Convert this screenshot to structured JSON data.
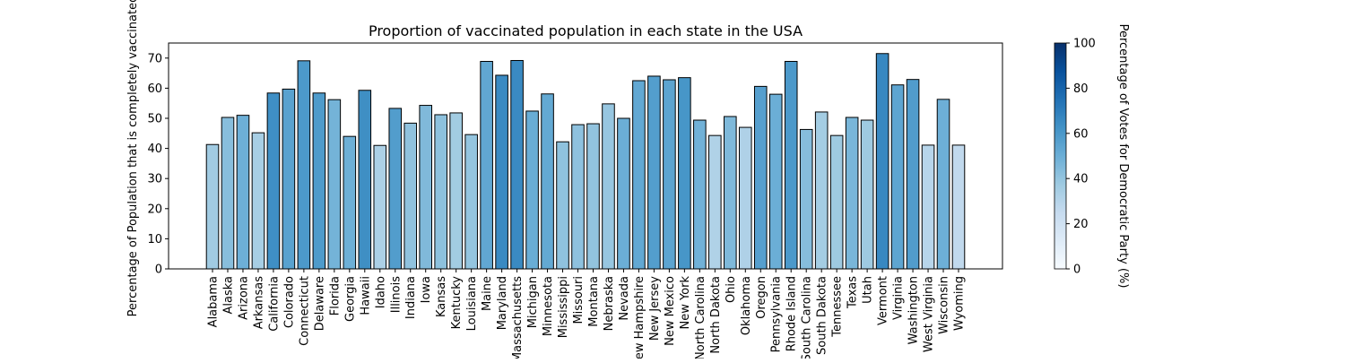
{
  "chart_data": {
    "type": "bar",
    "title": "Proportion of vaccinated population in each state in the USA",
    "xlabel": "",
    "ylabel": "Percentage of Population that is completely vaccinated",
    "ylim": [
      0,
      75
    ],
    "yticks": [
      0,
      10,
      20,
      30,
      40,
      50,
      60,
      70
    ],
    "grid": false,
    "categories": [
      "Alabama",
      "Alaska",
      "Arizona",
      "Arkansas",
      "California",
      "Colorado",
      "Connecticut",
      "Delaware",
      "Florida",
      "Georgia",
      "Hawaii",
      "Idaho",
      "Illinois",
      "Indiana",
      "Iowa",
      "Kansas",
      "Kentucky",
      "Louisiana",
      "Maine",
      "Maryland",
      "Massachusetts",
      "Michigan",
      "Minnesota",
      "Mississippi",
      "Missouri",
      "Montana",
      "Nebraska",
      "Nevada",
      "New Hampshire",
      "New Jersey",
      "New Mexico",
      "New York",
      "North Carolina",
      "North Dakota",
      "Ohio",
      "Oklahoma",
      "Oregon",
      "Pennsylvania",
      "Rhode Island",
      "South Carolina",
      "South Dakota",
      "Tennessee",
      "Texas",
      "Utah",
      "Vermont",
      "Virginia",
      "Washington",
      "West Virginia",
      "Wisconsin",
      "Wyoming"
    ],
    "values": [
      41.3,
      50.3,
      51.0,
      45.2,
      58.4,
      59.7,
      69.1,
      58.4,
      56.2,
      44.0,
      59.3,
      41.0,
      53.3,
      48.4,
      54.3,
      51.2,
      51.8,
      44.6,
      68.9,
      64.3,
      69.2,
      52.4,
      58.1,
      42.2,
      47.9,
      48.2,
      54.8,
      50.0,
      62.5,
      64.0,
      62.8,
      63.5,
      49.4,
      44.3,
      50.6,
      47.0,
      60.6,
      58.0,
      68.9,
      46.3,
      52.1,
      44.3,
      50.3,
      49.4,
      71.5,
      61.1,
      62.9,
      41.1,
      56.3,
      41.1
    ],
    "color_values": [
      36.6,
      42.8,
      49.4,
      34.8,
      63.5,
      55.4,
      59.3,
      58.7,
      47.9,
      49.5,
      63.7,
      33.1,
      57.5,
      41.0,
      44.9,
      41.6,
      36.2,
      39.9,
      53.1,
      65.4,
      65.6,
      50.6,
      52.4,
      41.1,
      41.4,
      40.5,
      39.2,
      50.1,
      52.7,
      57.3,
      54.3,
      60.9,
      48.6,
      31.8,
      45.2,
      32.3,
      56.5,
      50.0,
      59.4,
      43.4,
      35.6,
      37.5,
      46.5,
      37.6,
      66.1,
      54.1,
      58.0,
      29.7,
      49.4,
      26.6
    ],
    "colorbar": {
      "label": "Percentage of Votes for Democratic Party (%)",
      "range": [
        0,
        100
      ],
      "ticks": [
        0,
        20,
        40,
        60,
        80,
        100
      ],
      "colormap": "Blues"
    }
  }
}
